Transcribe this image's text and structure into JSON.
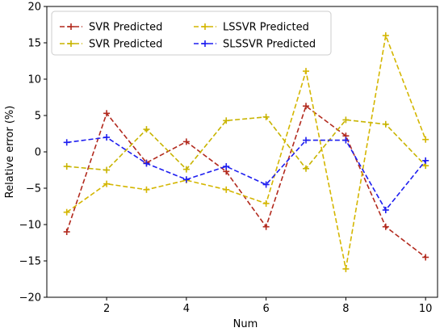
{
  "chart_data": {
    "type": "line",
    "title": "",
    "xlabel": "Num",
    "ylabel": "Relative error (%)",
    "xlim": [
      0.5,
      10.3
    ],
    "ylim": [
      -20,
      20
    ],
    "xticks": [
      2,
      4,
      6,
      8,
      10
    ],
    "yticks": [
      -20,
      -15,
      -10,
      -5,
      0,
      5,
      10,
      15,
      20
    ],
    "x": [
      1,
      2,
      3,
      4,
      5,
      6,
      7,
      8,
      9,
      10
    ],
    "grid": false,
    "legend_position": "top-left",
    "legend_columns": 2,
    "series": [
      {
        "name": "SVR Predicted",
        "color": "#b22a1e",
        "marker": "+",
        "linestyle": "dashed",
        "values": [
          -11,
          5.3,
          -1.5,
          1.4,
          -2.7,
          -10.3,
          6.3,
          2.2,
          -10.3,
          -14.5
        ]
      },
      {
        "name": "SVR Predicted",
        "color": "#c8b400",
        "marker": "+",
        "linestyle": "dashed",
        "values": [
          -2,
          -2.5,
          3.1,
          -2.4,
          4.3,
          4.8,
          -2.3,
          4.4,
          3.8,
          -1.9
        ]
      },
      {
        "name": "LSSVR Predicted",
        "color": "#d4b600",
        "marker": "+",
        "linestyle": "dashed",
        "values": [
          -8.3,
          -4.4,
          -5.2,
          -3.9,
          -5.2,
          -7.1,
          11.1,
          -16.1,
          16,
          1.7
        ]
      },
      {
        "name": "SLSSVR Predicted",
        "color": "#1e1ef0",
        "marker": "+",
        "linestyle": "dashed",
        "values": [
          1.3,
          2,
          -1.6,
          -3.8,
          -2,
          -4.5,
          1.6,
          1.6,
          -8,
          -1.2
        ]
      }
    ]
  }
}
